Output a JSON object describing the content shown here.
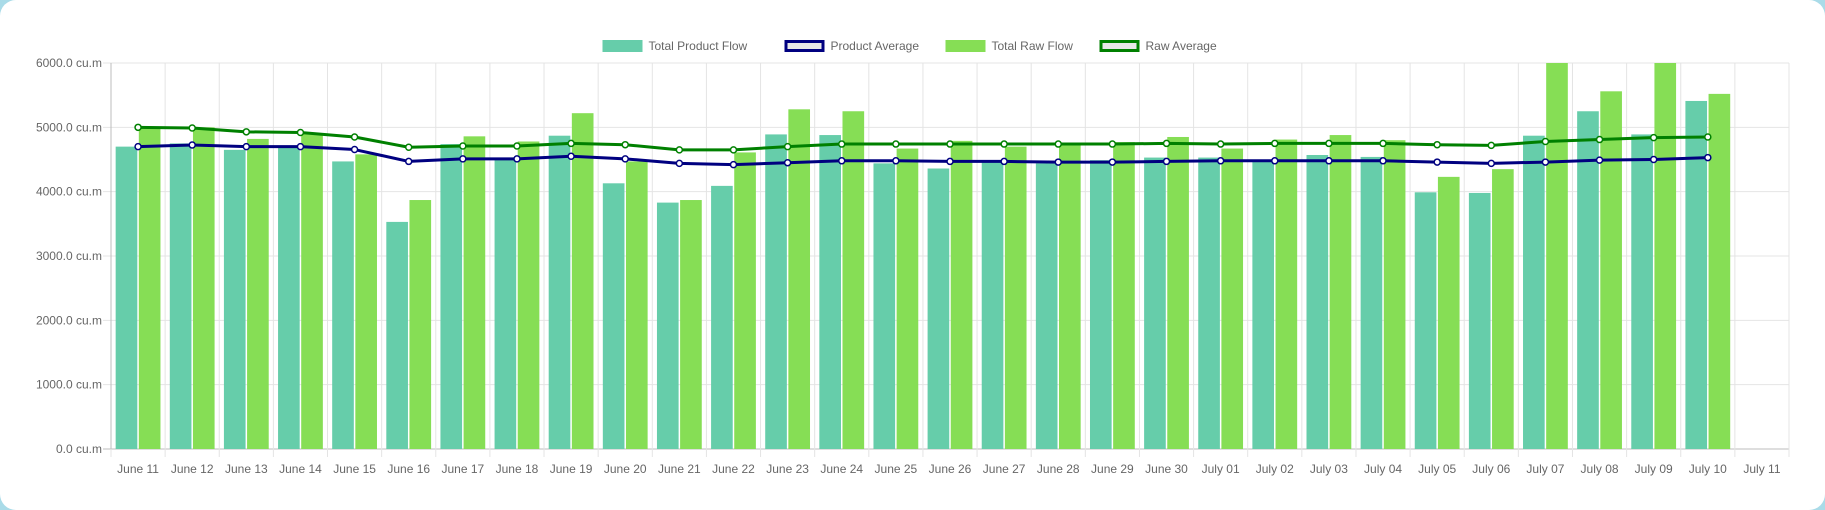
{
  "chart_data": {
    "type": "bar",
    "categories": [
      "June 11",
      "June 12",
      "June 13",
      "June 14",
      "June 15",
      "June 16",
      "June 17",
      "June 18",
      "June 19",
      "June 20",
      "June 21",
      "June 22",
      "June 23",
      "June 24",
      "June 25",
      "June 26",
      "June 27",
      "June 28",
      "June 29",
      "June 30",
      "July 01",
      "July 02",
      "July 03",
      "July 04",
      "July 05",
      "July 06",
      "July 07",
      "July 08",
      "July 09",
      "July 10",
      "July 11"
    ],
    "ylim": [
      0,
      6000
    ],
    "yticks": [
      "0.0 cu.m",
      "1000.0 cu.m",
      "2000.0 cu.m",
      "3000.0 cu.m",
      "4000.0 cu.m",
      "5000.0 cu.m",
      "6000.0 cu.m"
    ],
    "grid": true,
    "legend_position": "top",
    "series": [
      {
        "name": "Total Product Flow",
        "kind": "bar",
        "color": "#66cdaa",
        "values": [
          4700,
          4750,
          4650,
          4700,
          4470,
          3530,
          4740,
          4500,
          4870,
          4130,
          3830,
          4090,
          4890,
          4880,
          4440,
          4360,
          4470,
          4440,
          4490,
          4530,
          4530,
          4470,
          4570,
          4540,
          3990,
          3980,
          4870,
          5250,
          4890,
          5410,
          null
        ]
      },
      {
        "name": "Product Average",
        "kind": "line",
        "color": "#000080",
        "fill": "#e8e8e8",
        "values": [
          4700,
          4725,
          4700,
          4700,
          4655,
          4470,
          4510,
          4510,
          4550,
          4510,
          4440,
          4420,
          4450,
          4480,
          4480,
          4470,
          4470,
          4460,
          4460,
          4470,
          4480,
          4480,
          4480,
          4480,
          4460,
          4440,
          4460,
          4490,
          4500,
          4530,
          null
        ]
      },
      {
        "name": "Total Raw Flow",
        "kind": "bar",
        "color": "#86de55",
        "values": [
          5000,
          5000,
          4820,
          4900,
          4580,
          3870,
          4860,
          4780,
          5220,
          4470,
          3870,
          4610,
          5280,
          5250,
          4670,
          4790,
          4700,
          4740,
          4770,
          4850,
          4670,
          4810,
          4880,
          4800,
          4230,
          4350,
          6000,
          5560,
          6000,
          5520,
          null
        ]
      },
      {
        "name": "Raw Average",
        "kind": "line",
        "color": "#008000",
        "fill": "#e8e8e8",
        "values": [
          5000,
          4990,
          4930,
          4920,
          4850,
          4690,
          4710,
          4710,
          4750,
          4730,
          4650,
          4650,
          4700,
          4740,
          4740,
          4740,
          4740,
          4740,
          4740,
          4750,
          4740,
          4750,
          4750,
          4750,
          4730,
          4720,
          4780,
          4810,
          4840,
          4850,
          null
        ]
      }
    ]
  }
}
